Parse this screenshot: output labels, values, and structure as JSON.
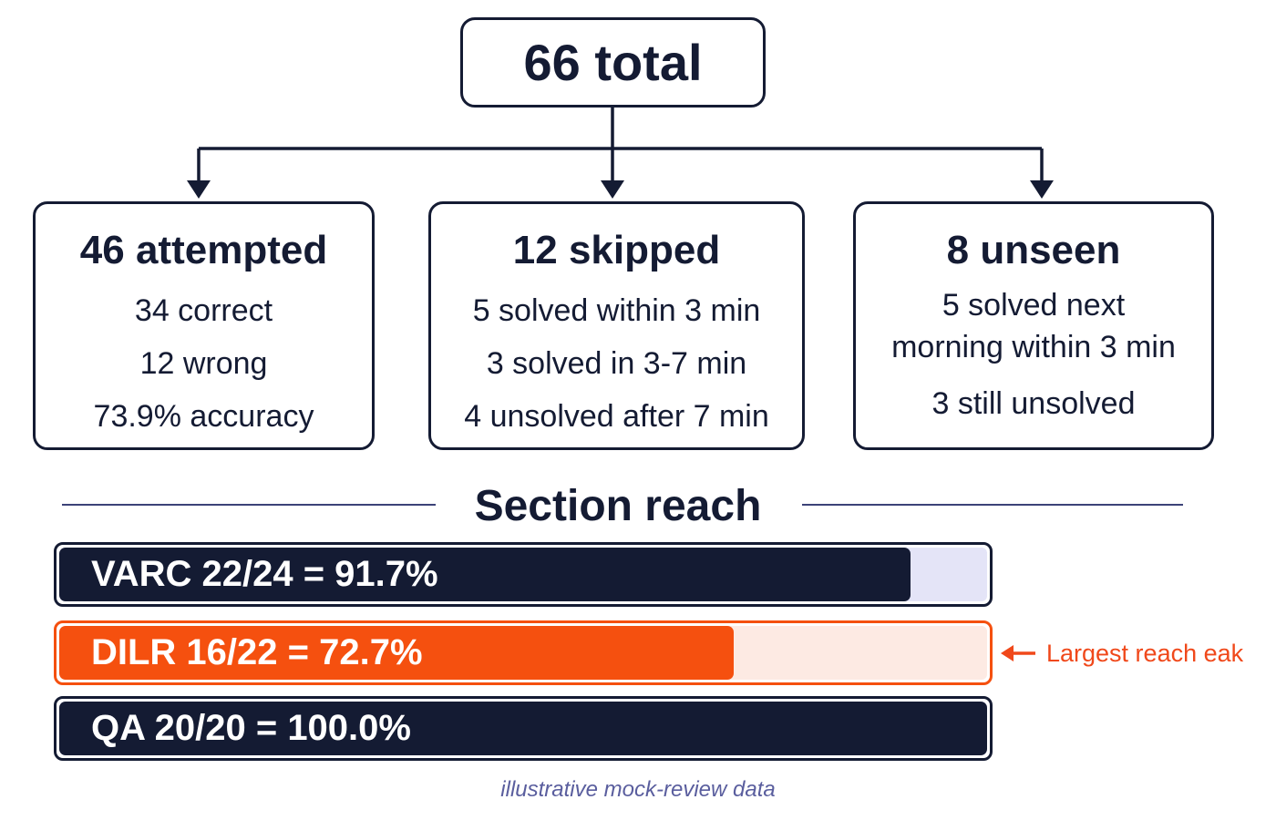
{
  "total": {
    "label": "66 total"
  },
  "branches": [
    {
      "title": "46 attempted",
      "lines": [
        "34 correct",
        "12 wrong",
        "73.9% accuracy"
      ]
    },
    {
      "title": "12 skipped",
      "lines": [
        "5 solved within 3 min",
        "3 solved in 3-7 min",
        "4 unsolved after 7 min"
      ]
    },
    {
      "title": "8 unseen",
      "lines": [
        "5 solved next morning within 3 min",
        "3 still unsolved"
      ]
    }
  ],
  "section": {
    "title": "Section reach",
    "bars": [
      {
        "label": "VARC 22/24 = 91.7%",
        "value": 91.7,
        "fill_color": "#141b33",
        "track_color": "#e4e4f7",
        "border_color": "#141b33"
      },
      {
        "label": "DILR 16/22 = 72.7%",
        "value": 72.7,
        "fill_color": "#f5500f",
        "track_color": "#fdeae3",
        "border_color": "#f5500f"
      },
      {
        "label": "QA 20/20 = 100.0%",
        "value": 100.0,
        "fill_color": "#141b33",
        "track_color": "#e4e4f7",
        "border_color": "#141b33"
      }
    ],
    "callout": "Largest reach eak"
  },
  "footnote": "illustrative mock-review data"
}
